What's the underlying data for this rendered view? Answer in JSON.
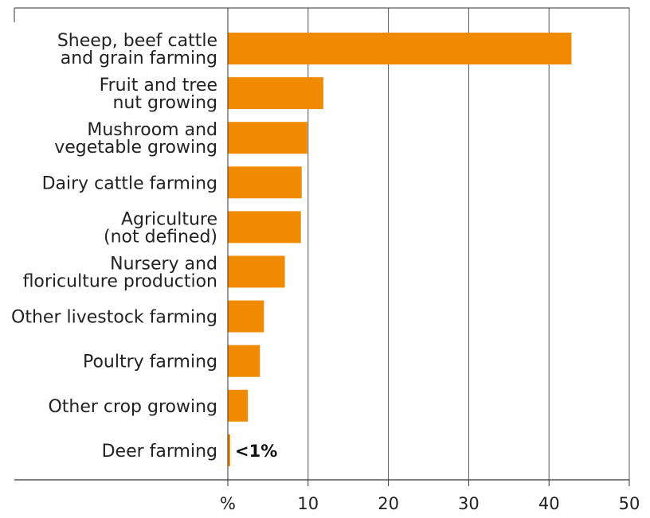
{
  "chart_data": {
    "type": "bar",
    "orientation": "horizontal",
    "categories": [
      [
        "Sheep, beef cattle",
        "and grain farming"
      ],
      [
        "Fruit and tree",
        "nut growing"
      ],
      [
        "Mushroom and",
        "vegetable growing"
      ],
      [
        "Dairy cattle farming"
      ],
      [
        "Agriculture",
        "(not defined)"
      ],
      [
        "Nursery and",
        "floriculture production"
      ],
      [
        "Other livestock farming"
      ],
      [
        "Poultry farming"
      ],
      [
        "Other crop growing"
      ],
      [
        "Deer farming"
      ]
    ],
    "values": [
      42.8,
      11.9,
      9.9,
      9.2,
      9.1,
      7.1,
      4.5,
      4.0,
      2.5,
      0.3
    ],
    "value_labels": [
      "",
      "",
      "",
      "",
      "",
      "",
      "",
      "",
      "",
      "<1%"
    ],
    "xlim": [
      0,
      50
    ],
    "xticks": [
      0,
      10,
      20,
      30,
      40,
      50
    ],
    "xtick_labels": [
      "%",
      "10",
      "20",
      "30",
      "40",
      "50"
    ],
    "grid": "vertical",
    "bar_color": "#f08a00",
    "title": "",
    "xlabel": "",
    "ylabel": ""
  }
}
